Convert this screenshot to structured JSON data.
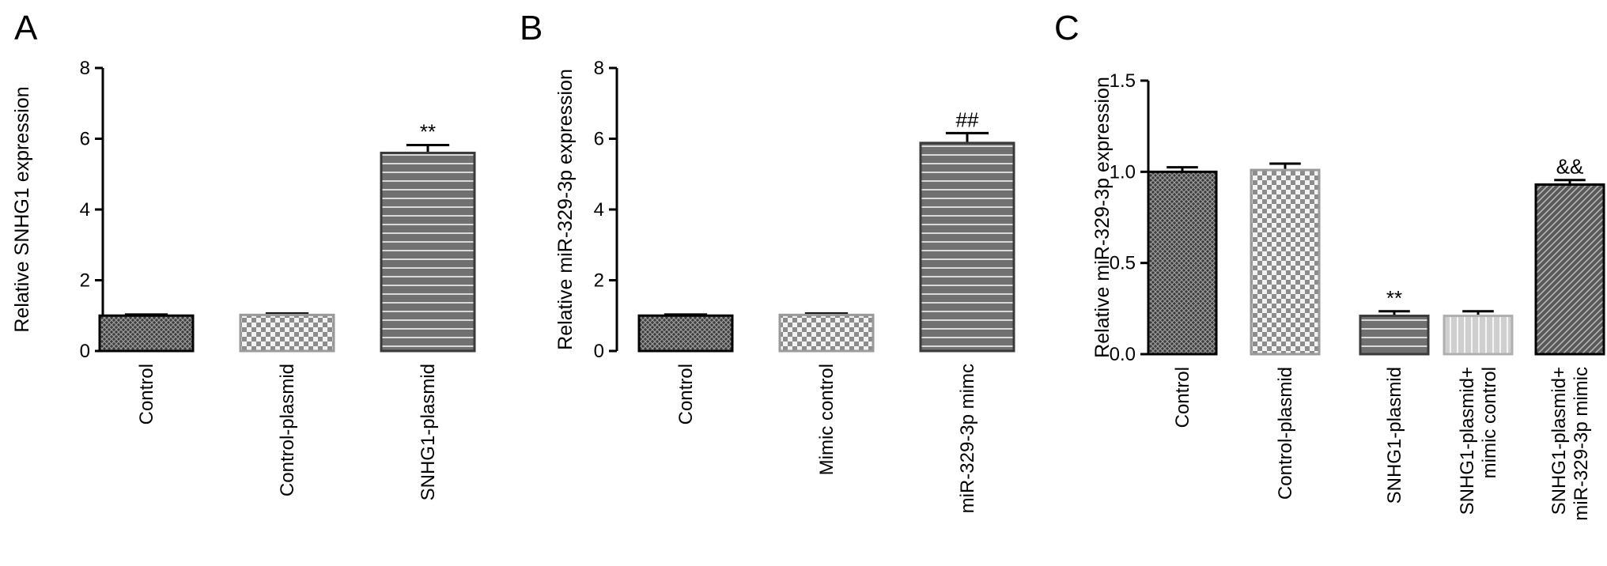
{
  "chart_data": [
    {
      "panel": "A",
      "type": "bar",
      "ylabel": "Relative SNHG1 expression",
      "ylim": [
        0,
        8
      ],
      "yticks": [
        "0",
        "2",
        "4",
        "6",
        "8"
      ],
      "categories": [
        "Control",
        "Control-plasmid",
        "SNHG1-plasmid"
      ],
      "values": [
        1.0,
        1.02,
        5.6
      ],
      "errors": [
        0.03,
        0.04,
        0.22
      ],
      "annotations": [
        "",
        "",
        "**"
      ]
    },
    {
      "panel": "B",
      "type": "bar",
      "ylabel": "Relative miR-329-3p expression",
      "ylim": [
        0,
        8
      ],
      "yticks": [
        "0",
        "2",
        "4",
        "6",
        "8"
      ],
      "categories": [
        "Control",
        "Mimic control",
        "miR-329-3p mimc"
      ],
      "values": [
        1.0,
        1.02,
        5.88
      ],
      "errors": [
        0.03,
        0.04,
        0.28
      ],
      "annotations": [
        "",
        "",
        "##"
      ]
    },
    {
      "panel": "C",
      "type": "bar",
      "ylabel": "Relative miR-329-3p expression",
      "ylim": [
        0,
        1.5
      ],
      "yticks": [
        "0.0",
        "0.5",
        "1.0",
        "1.5"
      ],
      "categories": [
        "Control",
        "Control-plasmid",
        "SNHG1-plasmid",
        "SNHG1-plasmid+\nmimic control",
        "SNHG1-plasmid+\nmiR-329-3p mimic"
      ],
      "values": [
        1.0,
        1.01,
        0.21,
        0.21,
        0.93
      ],
      "errors": [
        0.025,
        0.035,
        0.025,
        0.025,
        0.025
      ],
      "annotations": [
        "",
        "",
        "**",
        "",
        "&&"
      ]
    }
  ],
  "colors": {
    "dark_fill": "#444444",
    "mid_fill": "#7a7a7a",
    "light_fill": "#bdbdbd",
    "axis": "#000000",
    "stripe": "#ffffff"
  }
}
